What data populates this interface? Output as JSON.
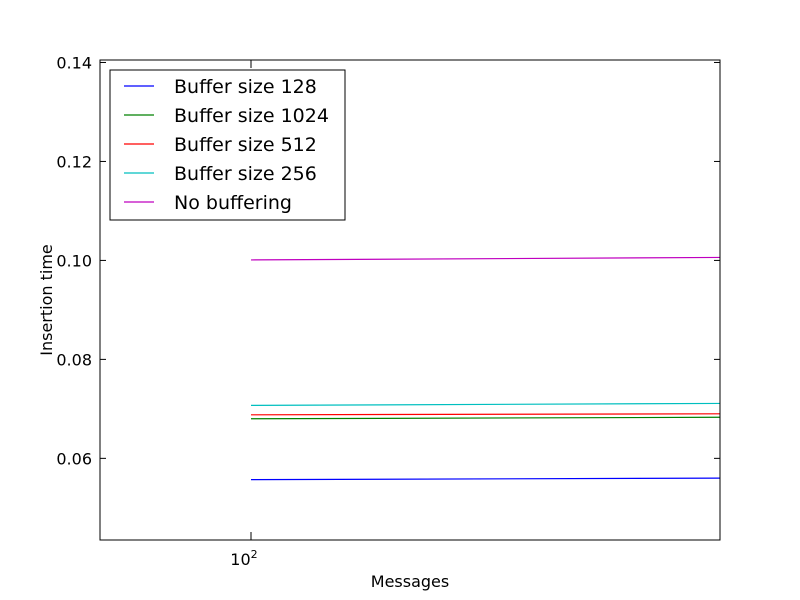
{
  "chart_data": {
    "type": "line",
    "title": "",
    "xlabel": "Messages",
    "ylabel": "Insertion time",
    "xscale": "log",
    "x_tick_label_base": "10",
    "x_tick_label_exp": "2",
    "xlim": [
      80,
      200
    ],
    "ylim": [
      0.0435,
      0.1405
    ],
    "yticks": [
      "0.06",
      "0.08",
      "0.10",
      "0.12",
      "0.14"
    ],
    "yticks_values": [
      0.06,
      0.08,
      0.1,
      0.12,
      0.14
    ],
    "grid": false,
    "legend_position": "top-left",
    "x": [
      100,
      200
    ],
    "series": [
      {
        "name": "Buffer size 128",
        "color": "#0000ff",
        "values": [
          0.0557,
          0.056
        ]
      },
      {
        "name": "Buffer size 1024",
        "color": "#008000",
        "values": [
          0.068,
          0.0683
        ]
      },
      {
        "name": "Buffer size 512",
        "color": "#ff0000",
        "values": [
          0.0688,
          0.069
        ]
      },
      {
        "name": "Buffer size 256",
        "color": "#00bfbf",
        "values": [
          0.0707,
          0.0711
        ]
      },
      {
        "name": "No buffering",
        "color": "#bf00bf",
        "values": [
          0.1001,
          0.1006
        ]
      }
    ]
  }
}
